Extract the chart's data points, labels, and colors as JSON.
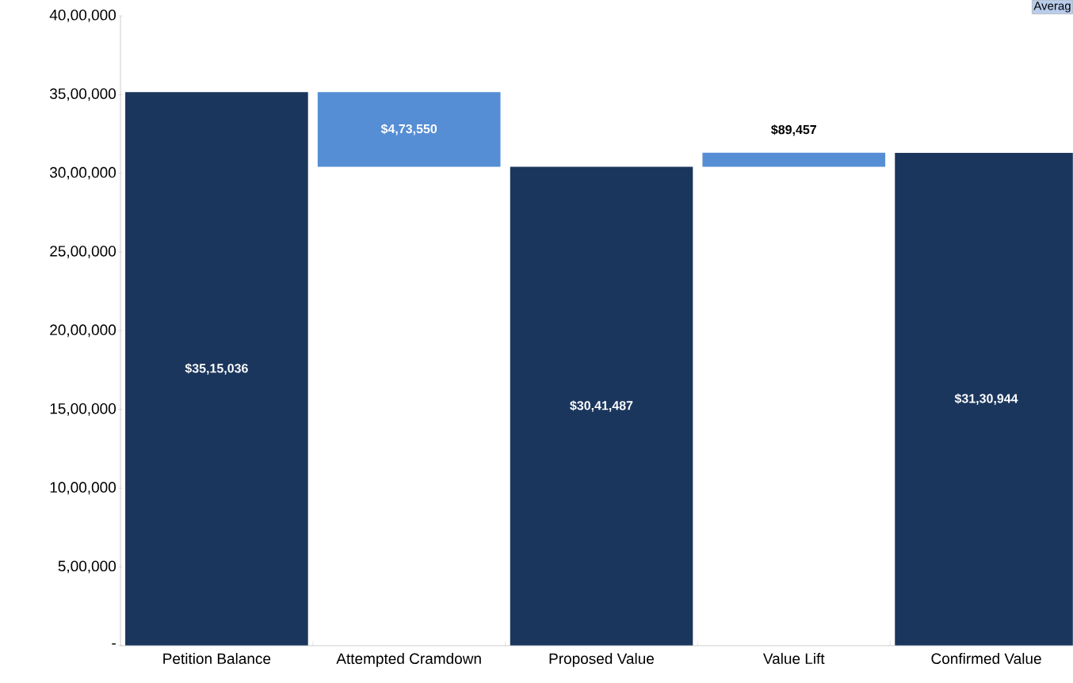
{
  "chart_data": {
    "type": "bar",
    "categories": [
      "Petition Balance",
      "Attempted Cramdown",
      "Proposed Value",
      "Value Lift",
      "Confirmed Value"
    ],
    "values": [
      3515036,
      473550,
      3041487,
      89457,
      3130944
    ],
    "base": [
      0,
      3041487,
      0,
      3041487,
      0
    ],
    "colors": [
      "#1b365d",
      "#558ed5",
      "#1b365d",
      "#558ed5",
      "#1b365d"
    ],
    "value_labels": [
      "$35,15,036",
      "$4,73,550",
      "$30,41,487",
      "$89,457",
      "$31,30,944"
    ],
    "ylim": [
      0,
      4000000
    ],
    "yticks": [
      {
        "value": 0,
        "label": "-"
      },
      {
        "value": 500000,
        "label": "5,00,000"
      },
      {
        "value": 1000000,
        "label": "10,00,000"
      },
      {
        "value": 1500000,
        "label": "15,00,000"
      },
      {
        "value": 2000000,
        "label": "20,00,000"
      },
      {
        "value": 2500000,
        "label": "25,00,000"
      },
      {
        "value": 3000000,
        "label": "30,00,000"
      },
      {
        "value": 3500000,
        "label": "35,00,000"
      },
      {
        "value": 4000000,
        "label": "40,00,000"
      }
    ],
    "annotations": [
      "Averag"
    ],
    "grid": false
  }
}
